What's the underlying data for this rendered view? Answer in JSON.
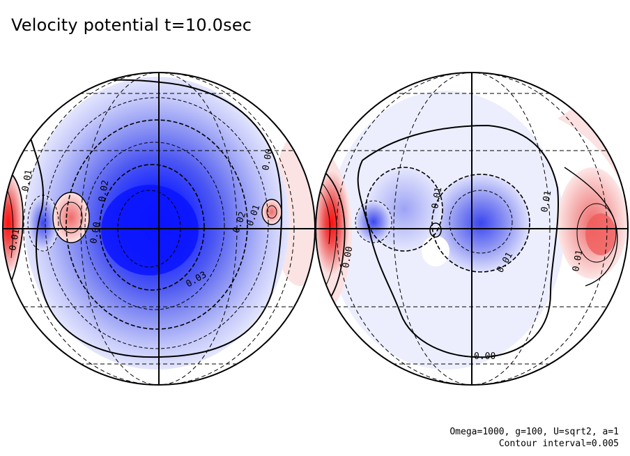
{
  "chart_data": {
    "type": "heatmap",
    "title": "Velocity potential t=10.0sec",
    "projection": "orthographic, two hemispheres side by side",
    "colormap": "blue (negative) - white (zero) - red (positive)",
    "contour_labels": [
      "0.01",
      "0.02",
      "0.00",
      "0.01",
      "0.02",
      "0.03",
      "0.00",
      "0.01",
      "0.01",
      "0.01",
      "0.00",
      "0.01",
      "0.01",
      "0.00"
    ],
    "left_hemisphere": {
      "extrema": [
        {
          "sign": "negative",
          "level": -0.035,
          "region": "center"
        },
        {
          "sign": "positive",
          "level": 0.01,
          "region": "west-center"
        },
        {
          "sign": "positive",
          "level": 0.015,
          "region": "west limb"
        },
        {
          "sign": "positive",
          "level": 0.005,
          "region": "east-center"
        }
      ]
    },
    "right_hemisphere": {
      "extrema": [
        {
          "sign": "positive",
          "level": 0.02,
          "region": "west limb"
        },
        {
          "sign": "negative",
          "level": -0.015,
          "region": "center-east"
        },
        {
          "sign": "negative",
          "level": -0.01,
          "region": "center-west"
        },
        {
          "sign": "positive",
          "level": 0.015,
          "region": "east limb"
        }
      ]
    }
  },
  "footer": {
    "params": "Omega=1000, g=100, U=sqrt2, a=1",
    "contour_interval": "Contour interval=0.005"
  }
}
